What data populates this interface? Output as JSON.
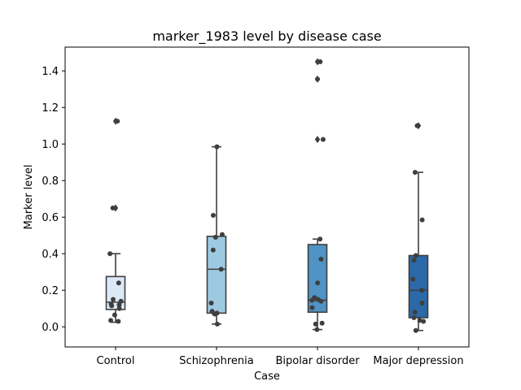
{
  "chart_data": {
    "type": "box",
    "title": "marker_1983 level by disease case",
    "xlabel": "Case",
    "ylabel": "Marker level",
    "ylim": [
      -0.11,
      1.53
    ],
    "yticks": [
      0.0,
      0.2,
      0.4,
      0.6,
      0.8,
      1.0,
      1.2,
      1.4
    ],
    "ytick_labels": [
      "0.0",
      "0.2",
      "0.4",
      "0.6",
      "0.8",
      "1.0",
      "1.2",
      "1.4"
    ],
    "categories": [
      "Control",
      "Schizophrenia",
      "Bipolar disorder",
      "Major depression"
    ],
    "grid": false,
    "boxes": [
      {
        "category": "Control",
        "color": "#dbe9f6",
        "q1": 0.095,
        "median": 0.135,
        "q3": 0.275,
        "whisker_low": 0.025,
        "whisker_high": 0.4,
        "outliers": [
          0.65,
          1.125
        ],
        "points": [
          0.03,
          0.035,
          0.065,
          0.1,
          0.115,
          0.12,
          0.125,
          0.14,
          0.15,
          0.24,
          0.4,
          0.65,
          1.125
        ]
      },
      {
        "category": "Schizophrenia",
        "color": "#9ecae1",
        "q1": 0.075,
        "median": 0.315,
        "q3": 0.495,
        "whisker_low": 0.015,
        "whisker_high": 0.985,
        "outliers": [],
        "points": [
          0.015,
          0.07,
          0.072,
          0.075,
          0.085,
          0.13,
          0.315,
          0.42,
          0.49,
          0.505,
          0.61,
          0.985
        ]
      },
      {
        "category": "Bipolar disorder",
        "color": "#4f94c4",
        "q1": 0.08,
        "median": 0.145,
        "q3": 0.45,
        "whisker_low": -0.015,
        "whisker_high": 0.48,
        "outliers": [
          1.025,
          1.355,
          1.45
        ],
        "points": [
          -0.015,
          0.015,
          0.02,
          0.105,
          0.14,
          0.145,
          0.15,
          0.16,
          0.24,
          0.37,
          0.48,
          1.025,
          1.355,
          1.45
        ]
      },
      {
        "category": "Major depression",
        "color": "#2b69a8",
        "q1": 0.05,
        "median": 0.2,
        "q3": 0.39,
        "whisker_low": -0.02,
        "whisker_high": 0.845,
        "outliers": [
          1.1
        ],
        "points": [
          -0.02,
          0.03,
          0.035,
          0.05,
          0.08,
          0.13,
          0.2,
          0.26,
          0.365,
          0.39,
          0.585,
          0.845,
          1.1
        ]
      }
    ]
  }
}
